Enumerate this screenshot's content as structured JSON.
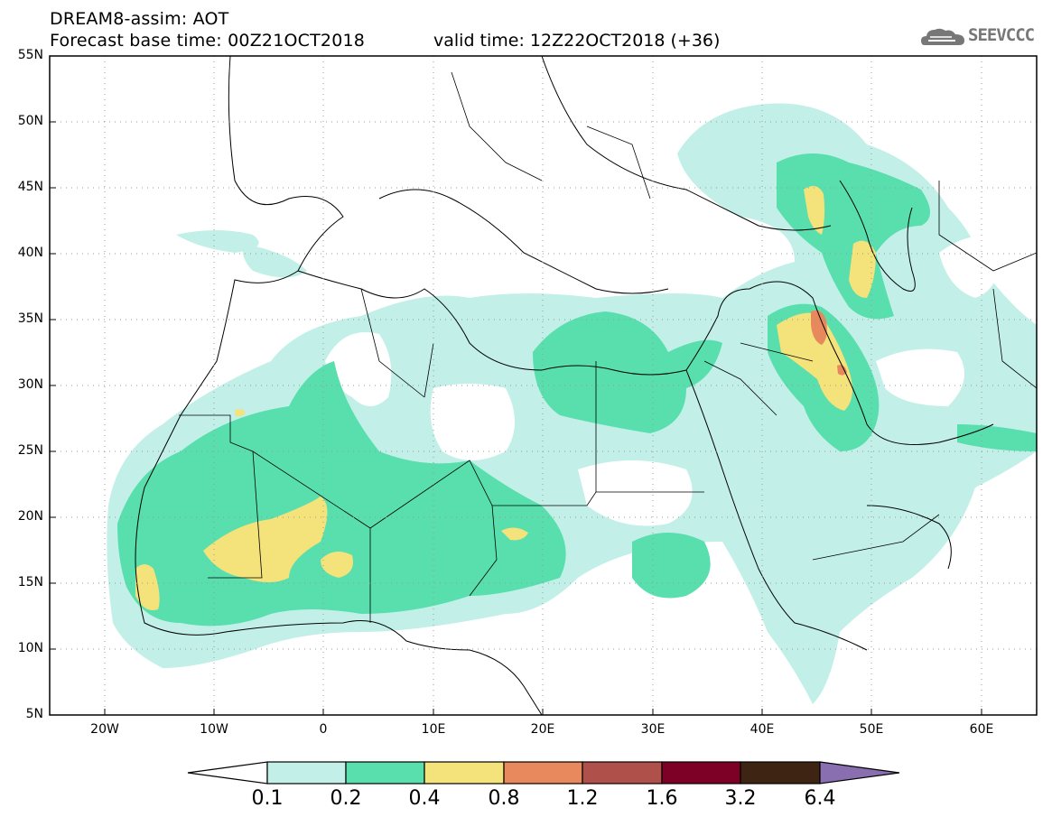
{
  "header": {
    "title": "DREAM8-assim: AOT",
    "base_time": "Forecast base time: 00Z21OCT2018",
    "valid_time": "valid time: 12Z22OCT2018 (+36)",
    "logo_text": "SEEVCCC"
  },
  "map": {
    "variable": "AOT",
    "lat_labels": [
      "55N",
      "50N",
      "45N",
      "40N",
      "35N",
      "30N",
      "25N",
      "20N",
      "15N",
      "10N",
      "5N"
    ],
    "lon_labels": [
      "20W",
      "10W",
      "0",
      "10E",
      "20E",
      "30E",
      "40E",
      "50E",
      "60E"
    ],
    "lat_range": [
      5,
      55
    ],
    "lon_range": [
      -25,
      65
    ],
    "grid": true
  },
  "colorbar": {
    "labels": [
      "0.1",
      "0.2",
      "0.4",
      "0.8",
      "1.2",
      "1.6",
      "3.2",
      "6.4"
    ],
    "colors": [
      "#ffffff",
      "#c2f0e8",
      "#58dfad",
      "#f4e27a",
      "#e8895d",
      "#b0504a",
      "#7d0026",
      "#3e2412",
      "#8a6fb0"
    ]
  }
}
